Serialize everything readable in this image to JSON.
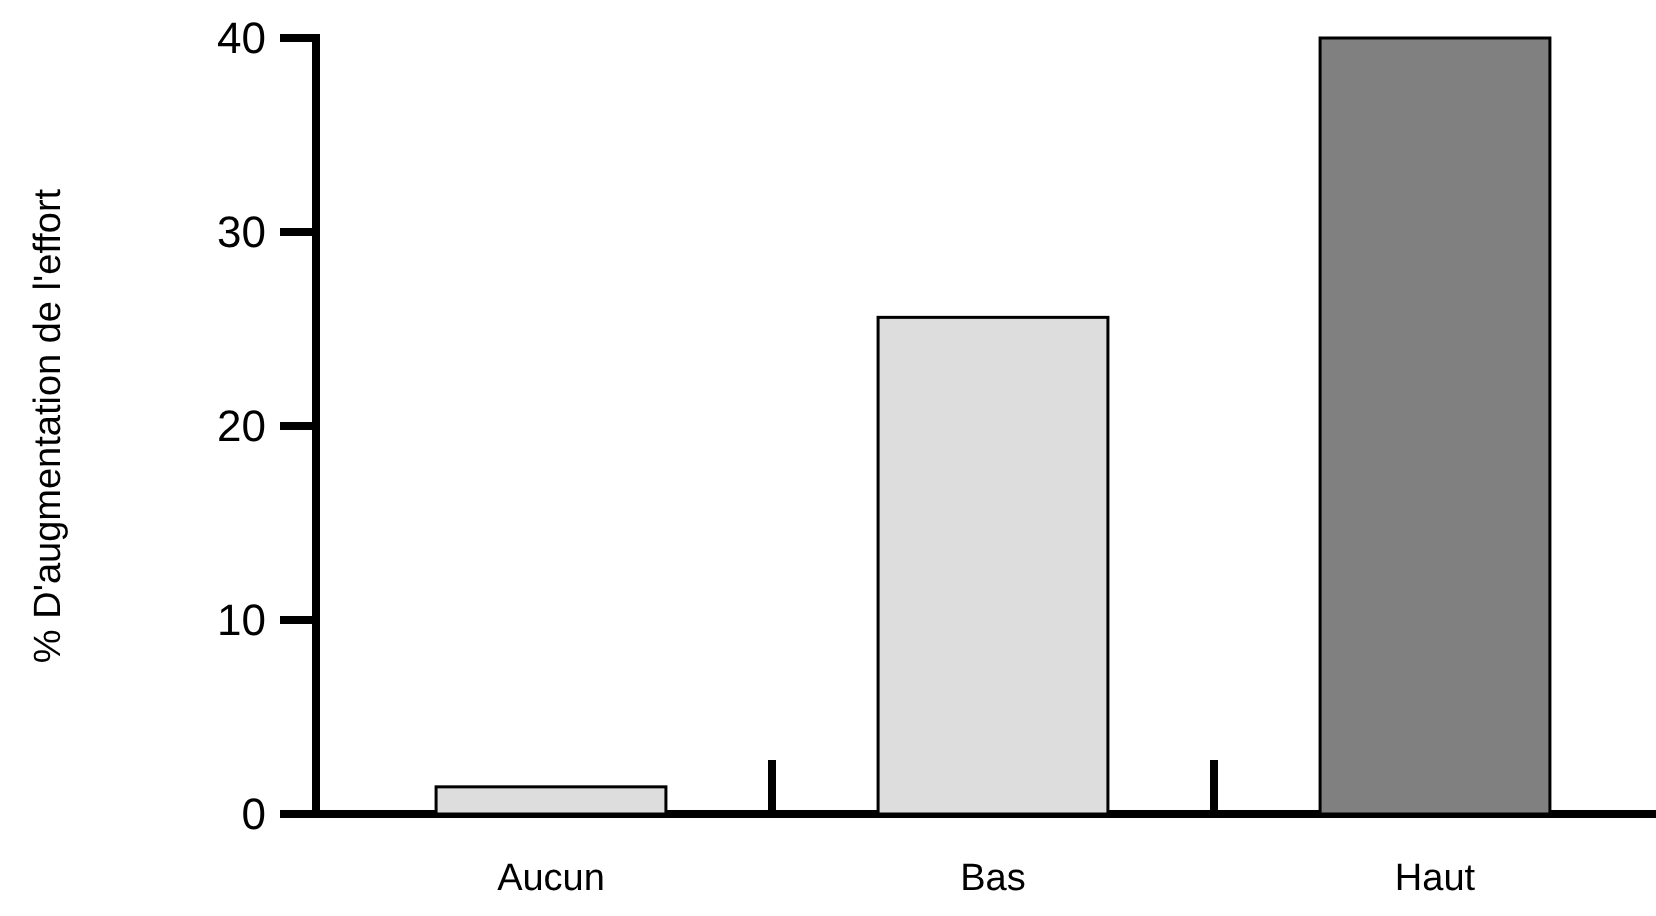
{
  "chart_data": {
    "type": "bar",
    "ylabel": "% D'augmentation de l'effort",
    "categories": [
      "Aucun",
      "Bas",
      "Haut"
    ],
    "values": [
      1.4,
      25.6,
      40
    ],
    "colors": [
      "#dddddd",
      "#dddddd",
      "#808080"
    ],
    "ylim": [
      0,
      40
    ],
    "yticks": [
      0,
      10,
      20,
      30,
      40
    ],
    "grid": false
  }
}
